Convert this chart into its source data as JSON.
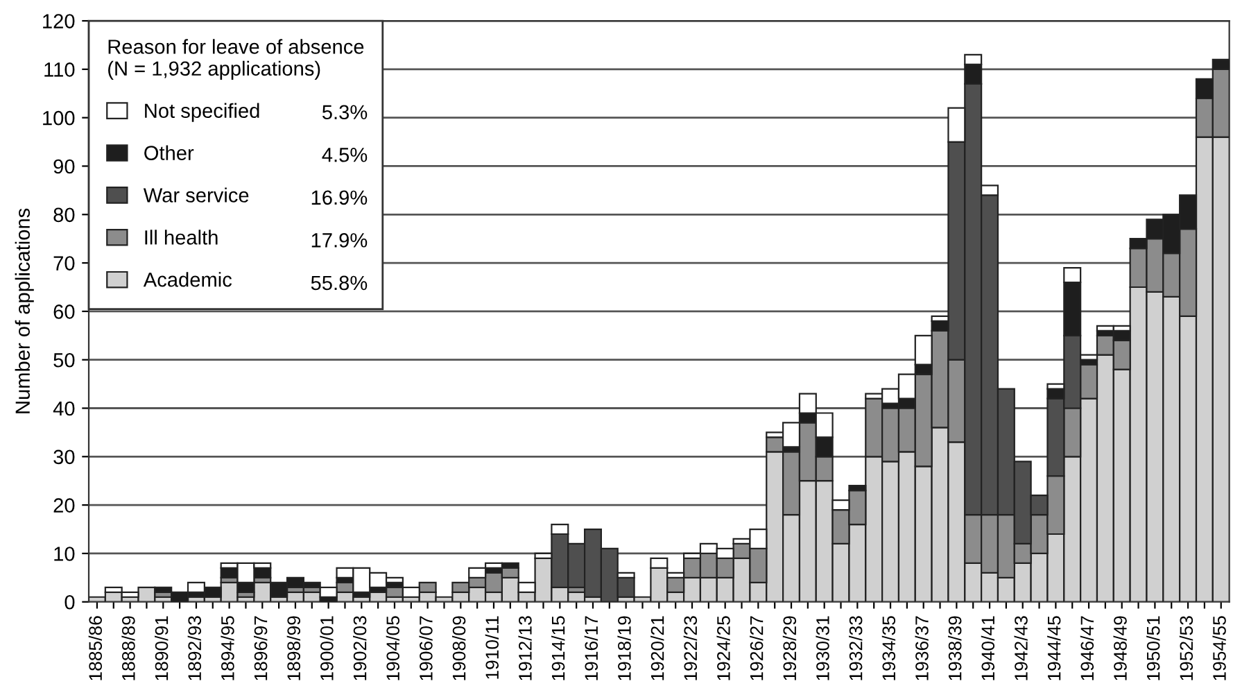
{
  "chart_data": {
    "type": "bar",
    "stacked": true,
    "ylabel": "Number of applications",
    "legend_title": "Reason for leave of absence\n(N = 1,932 applications)",
    "categories": [
      "1885/86",
      null,
      "1888/89",
      null,
      "1890/91",
      null,
      "1892/93",
      null,
      "1894/95",
      null,
      "1896/97",
      null,
      "1898/99",
      null,
      "1900/01",
      null,
      "1902/03",
      null,
      "1904/05",
      null,
      "1906/07",
      null,
      "1908/09",
      null,
      "1910/11",
      null,
      "1912/13",
      null,
      "1914/15",
      null,
      "1916/17",
      null,
      "1918/19",
      null,
      "1920/21",
      null,
      "1922/23",
      null,
      "1924/25",
      null,
      "1926/27",
      null,
      "1928/29",
      null,
      "1930/31",
      null,
      "1932/33",
      null,
      "1934/35",
      null,
      "1936/37",
      null,
      "1938/39",
      null,
      "1940/41",
      null,
      "1942/43",
      null,
      "1944/45",
      null,
      "1946/47",
      null,
      "1948/49",
      null,
      "1950/51",
      null,
      "1952/53",
      null,
      "1954/55"
    ],
    "series": [
      {
        "name": "Academic",
        "color": "#d0d0d0",
        "values": [
          1,
          2,
          1,
          3,
          1,
          0,
          1,
          1,
          4,
          1,
          4,
          1,
          2,
          2,
          0,
          2,
          1,
          2,
          1,
          1,
          2,
          1,
          2,
          3,
          2,
          5,
          2,
          9,
          3,
          2,
          1,
          0,
          1,
          1,
          7,
          2,
          5,
          5,
          5,
          9,
          4,
          31,
          18,
          25,
          25,
          12,
          16,
          30,
          29,
          31,
          28,
          36,
          33,
          8,
          6,
          5,
          8,
          10,
          14,
          30,
          42,
          51,
          48,
          65,
          64,
          63,
          59,
          96,
          96
        ]
      },
      {
        "name": "Ill health",
        "color": "#8c8c8c",
        "values": [
          0,
          0,
          0,
          0,
          1,
          0,
          0,
          0,
          1,
          1,
          1,
          0,
          1,
          1,
          0,
          2,
          0,
          0,
          2,
          0,
          2,
          0,
          2,
          2,
          4,
          2,
          0,
          0,
          0,
          1,
          0,
          0,
          0,
          0,
          0,
          3,
          4,
          5,
          4,
          3,
          7,
          3,
          13,
          12,
          5,
          7,
          7,
          12,
          11,
          9,
          19,
          20,
          17,
          10,
          12,
          13,
          4,
          8,
          12,
          10,
          7,
          4,
          6,
          8,
          11,
          9,
          18,
          8,
          14
        ]
      },
      {
        "name": "War service",
        "color": "#4f4f4f",
        "values": [
          0,
          0,
          0,
          0,
          0,
          0,
          0,
          0,
          0,
          0,
          0,
          0,
          0,
          0,
          0,
          0,
          0,
          0,
          0,
          0,
          0,
          0,
          0,
          0,
          0,
          0,
          0,
          0,
          11,
          9,
          14,
          11,
          4,
          0,
          0,
          0,
          0,
          0,
          0,
          0,
          0,
          0,
          0,
          0,
          0,
          0,
          0,
          0,
          0,
          0,
          0,
          0,
          45,
          89,
          66,
          26,
          17,
          4,
          16,
          15,
          0,
          0,
          0,
          0,
          0,
          0,
          0,
          0,
          0
        ]
      },
      {
        "name": "Other",
        "color": "#1e1e1e",
        "values": [
          0,
          0,
          0,
          0,
          1,
          2,
          1,
          2,
          2,
          2,
          2,
          3,
          2,
          1,
          1,
          1,
          1,
          1,
          1,
          0,
          0,
          0,
          0,
          0,
          1,
          1,
          0,
          0,
          0,
          0,
          0,
          0,
          0,
          0,
          0,
          0,
          0,
          0,
          0,
          0,
          0,
          0,
          1,
          2,
          4,
          0,
          1,
          0,
          1,
          2,
          2,
          2,
          0,
          4,
          0,
          0,
          0,
          0,
          2,
          11,
          1,
          1,
          2,
          2,
          4,
          8,
          7,
          4,
          2
        ]
      },
      {
        "name": "Not specified",
        "color": "#ffffff",
        "values": [
          0,
          1,
          1,
          0,
          0,
          0,
          2,
          0,
          1,
          4,
          1,
          0,
          0,
          0,
          2,
          2,
          5,
          3,
          1,
          2,
          0,
          0,
          0,
          2,
          1,
          0,
          2,
          1,
          2,
          0,
          0,
          0,
          1,
          0,
          2,
          1,
          1,
          2,
          2,
          1,
          4,
          1,
          5,
          4,
          5,
          2,
          0,
          1,
          3,
          5,
          6,
          1,
          7,
          2,
          2,
          0,
          0,
          0,
          1,
          3,
          1,
          1,
          1,
          0,
          0,
          0,
          0,
          0,
          0
        ]
      }
    ],
    "annotations": [
      "5.3%",
      "4.5%",
      "16.9%",
      "17.9%",
      "55.8%"
    ],
    "ylim": [
      0,
      120
    ],
    "yticks": [
      0,
      10,
      20,
      30,
      40,
      50,
      60,
      70,
      80,
      90,
      100,
      110,
      120
    ],
    "grid": "y",
    "legend": "top left"
  }
}
